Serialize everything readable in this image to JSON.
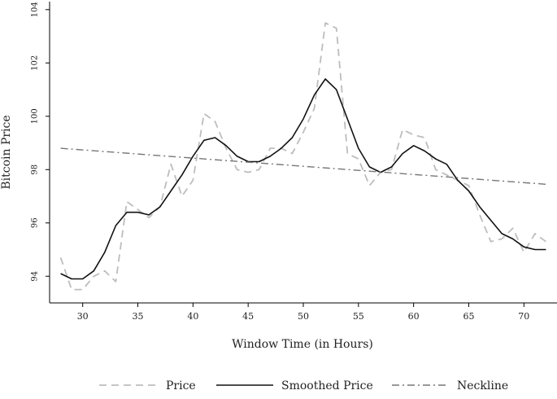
{
  "chart_data": {
    "type": "line",
    "xlabel": "Window Time (in Hours)",
    "ylabel": "Bitcoin Price",
    "xlim": [
      27,
      73
    ],
    "ylim": [
      93,
      104.3
    ],
    "x_ticks": [
      30,
      35,
      40,
      45,
      50,
      55,
      60,
      65,
      70
    ],
    "y_ticks": [
      94,
      96,
      98,
      100,
      102,
      104
    ],
    "grid": false,
    "legend_position": "bottom",
    "series": [
      {
        "name": "Price",
        "style": "dashed",
        "color": "#bdbdbd",
        "x": [
          28,
          29,
          30,
          31,
          32,
          33,
          34,
          35,
          36,
          37,
          38,
          39,
          40,
          41,
          42,
          43,
          44,
          45,
          46,
          47,
          48,
          49,
          50,
          51,
          52,
          53,
          54,
          55,
          56,
          57,
          58,
          59,
          60,
          61,
          62,
          63,
          64,
          65,
          66,
          67,
          68,
          69,
          70,
          71,
          72
        ],
        "y": [
          94.7,
          93.5,
          93.5,
          94.0,
          94.2,
          93.8,
          96.8,
          96.5,
          96.2,
          96.6,
          98.2,
          97.0,
          97.6,
          100.1,
          99.8,
          98.8,
          98.0,
          97.9,
          98.0,
          98.8,
          98.8,
          98.6,
          99.4,
          100.3,
          103.5,
          103.3,
          98.6,
          98.4,
          97.4,
          97.9,
          98.0,
          99.5,
          99.3,
          99.2,
          98.0,
          97.8,
          97.6,
          97.4,
          96.3,
          95.3,
          95.4,
          95.8,
          94.9,
          95.6,
          95.3
        ]
      },
      {
        "name": "Smoothed Price",
        "style": "solid",
        "color": "#111111",
        "x": [
          28,
          29,
          30,
          31,
          32,
          33,
          34,
          35,
          36,
          37,
          38,
          39,
          40,
          41,
          42,
          43,
          44,
          45,
          46,
          47,
          48,
          49,
          50,
          51,
          52,
          53,
          54,
          55,
          56,
          57,
          58,
          59,
          60,
          61,
          62,
          63,
          64,
          65,
          66,
          67,
          68,
          69,
          70,
          71,
          72
        ],
        "y": [
          94.1,
          93.9,
          93.9,
          94.2,
          94.9,
          95.9,
          96.4,
          96.4,
          96.3,
          96.6,
          97.2,
          97.8,
          98.5,
          99.1,
          99.2,
          98.9,
          98.5,
          98.3,
          98.3,
          98.5,
          98.8,
          99.2,
          99.9,
          100.8,
          101.4,
          101.0,
          99.9,
          98.8,
          98.1,
          97.9,
          98.1,
          98.6,
          98.9,
          98.7,
          98.4,
          98.2,
          97.6,
          97.2,
          96.6,
          96.1,
          95.6,
          95.4,
          95.1,
          95.0,
          95.0
        ]
      },
      {
        "name": "Neckline",
        "style": "dashdot",
        "color": "#777777",
        "x": [
          28,
          72
        ],
        "y": [
          98.8,
          97.45
        ]
      }
    ]
  }
}
